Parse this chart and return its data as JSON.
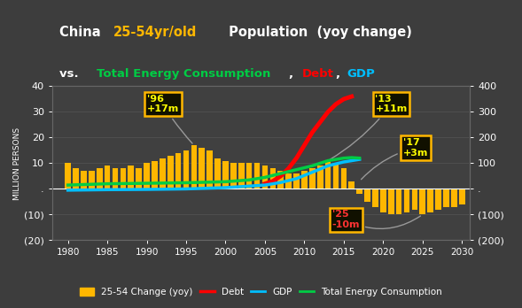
{
  "bg_color": "#3d3d3d",
  "plot_bg_color": "#404040",
  "bar_years": [
    1980,
    1981,
    1982,
    1983,
    1984,
    1985,
    1986,
    1987,
    1988,
    1989,
    1990,
    1991,
    1992,
    1993,
    1994,
    1995,
    1996,
    1997,
    1998,
    1999,
    2000,
    2001,
    2002,
    2003,
    2004,
    2005,
    2006,
    2007,
    2008,
    2009,
    2010,
    2011,
    2012,
    2013,
    2014,
    2015,
    2016,
    2017,
    2018,
    2019,
    2020,
    2021,
    2022,
    2023,
    2024,
    2025,
    2026,
    2027,
    2028,
    2029,
    2030
  ],
  "bar_values": [
    10,
    8,
    7,
    7,
    8,
    9,
    8,
    8,
    9,
    8,
    10,
    11,
    12,
    13,
    14,
    15,
    17,
    16,
    15,
    12,
    11,
    10,
    10,
    10,
    10,
    9,
    8,
    7,
    6,
    6,
    7,
    8,
    9,
    11,
    10,
    8,
    3,
    -2,
    -5,
    -7,
    -9,
    -10,
    -10,
    -9,
    -8,
    -10,
    -9,
    -8,
    -7,
    -7,
    -6
  ],
  "bar_color": "#FFB700",
  "debt_years": [
    2005,
    2006,
    2007,
    2008,
    2009,
    2010,
    2011,
    2012,
    2013,
    2014,
    2015,
    2016
  ],
  "debt_values": [
    20,
    30,
    50,
    80,
    120,
    170,
    220,
    260,
    300,
    330,
    350,
    360
  ],
  "debt_color": "#FF0000",
  "gdp_years": [
    1980,
    1985,
    1990,
    1995,
    2000,
    2005,
    2007,
    2009,
    2011,
    2013,
    2015,
    2017
  ],
  "gdp_values": [
    -5,
    -3,
    -2,
    0,
    5,
    15,
    25,
    40,
    65,
    90,
    105,
    115
  ],
  "gdp_color": "#00BFFF",
  "energy_years": [
    1980,
    1985,
    1990,
    1995,
    2000,
    2003,
    2005,
    2007,
    2009,
    2011,
    2013,
    2015,
    2016,
    2017
  ],
  "energy_values": [
    15,
    20,
    22,
    24,
    28,
    35,
    45,
    60,
    75,
    90,
    110,
    120,
    122,
    120
  ],
  "energy_color": "#00CC44",
  "xlim": [
    1978,
    2031
  ],
  "ylim_left": [
    -20,
    40
  ],
  "ylim_right": [
    -200,
    400
  ],
  "xticks": [
    1980,
    1985,
    1990,
    1995,
    2000,
    2005,
    2010,
    2015,
    2020,
    2025,
    2030
  ],
  "yticks_left": [
    -20,
    -10,
    0,
    10,
    20,
    30,
    40
  ],
  "ytick_labels_left": [
    "(20)",
    "(10)",
    ".",
    "10",
    "20",
    "30",
    "40"
  ],
  "yticks_right": [
    -200,
    -100,
    0,
    100,
    200,
    300,
    400
  ],
  "ytick_labels_right": [
    "(200)",
    "(100)",
    ".",
    "100",
    "200",
    "300",
    "400"
  ],
  "ylabel": "MILLION PERSONS",
  "legend_bar_label": "25-54 Change (yoy)",
  "legend_debt_label": "Debt",
  "legend_gdp_label": "GDP",
  "legend_energy_label": "Total Energy Consumption",
  "title_box_color": "black",
  "title_border_color": "white"
}
